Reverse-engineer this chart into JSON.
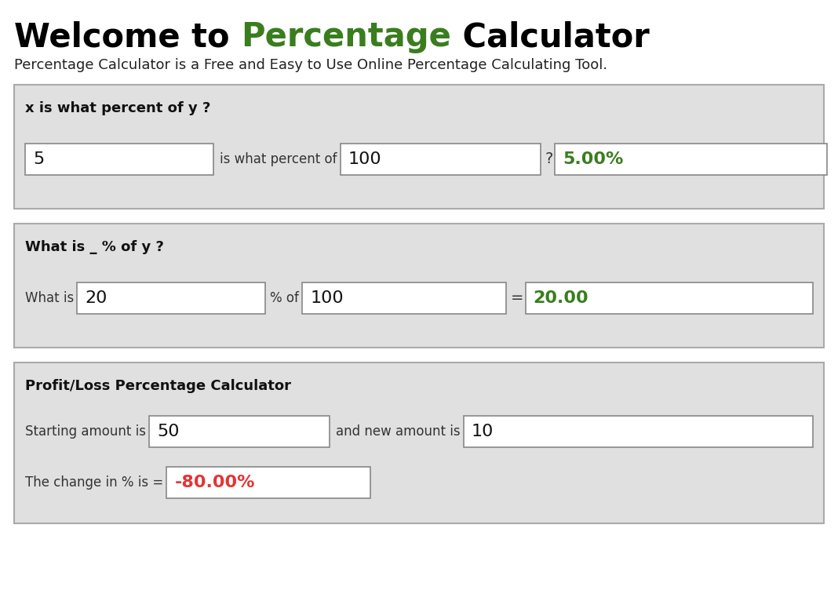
{
  "bg_color": "#ffffff",
  "title_text1": "Welcome to ",
  "title_text2": "Percentage",
  "title_text3": " Calculator",
  "title_color1": "#000000",
  "title_color2": "#3a7d1e",
  "title_fontsize": 30,
  "subtitle": "Percentage Calculator is a Free and Easy to Use Online Percentage Calculating Tool.",
  "subtitle_fontsize": 13,
  "panel_bg": "#e0e0e0",
  "panel_border": "#aaaaaa",
  "input_bg": "#ffffff",
  "input_border": "#888888",
  "section1_label": "x is what percent of y ?",
  "section1_val1": "5",
  "section1_mid": "is what percent of",
  "section1_val2": "100",
  "section1_sep": "?",
  "section1_result": "5.00%",
  "section1_result_color": "#3a7d1e",
  "section2_label": "What is _ % of y ?",
  "section2_pre": "What is",
  "section2_val1": "20",
  "section2_mid": "% of",
  "section2_val2": "100",
  "section2_sep": "=",
  "section2_result": "20.00",
  "section2_result_color": "#3a7d1e",
  "section3_label": "Profit/Loss Percentage Calculator",
  "section3_pre1": "Starting amount is",
  "section3_val1": "50",
  "section3_mid": "and new amount is",
  "section3_val2": "10",
  "section3_pre2": "The change in % is =",
  "section3_result": "-80.00%",
  "section3_result_color": "#e63333",
  "fig_width": 10.68,
  "fig_height": 7.8,
  "dpi": 100
}
